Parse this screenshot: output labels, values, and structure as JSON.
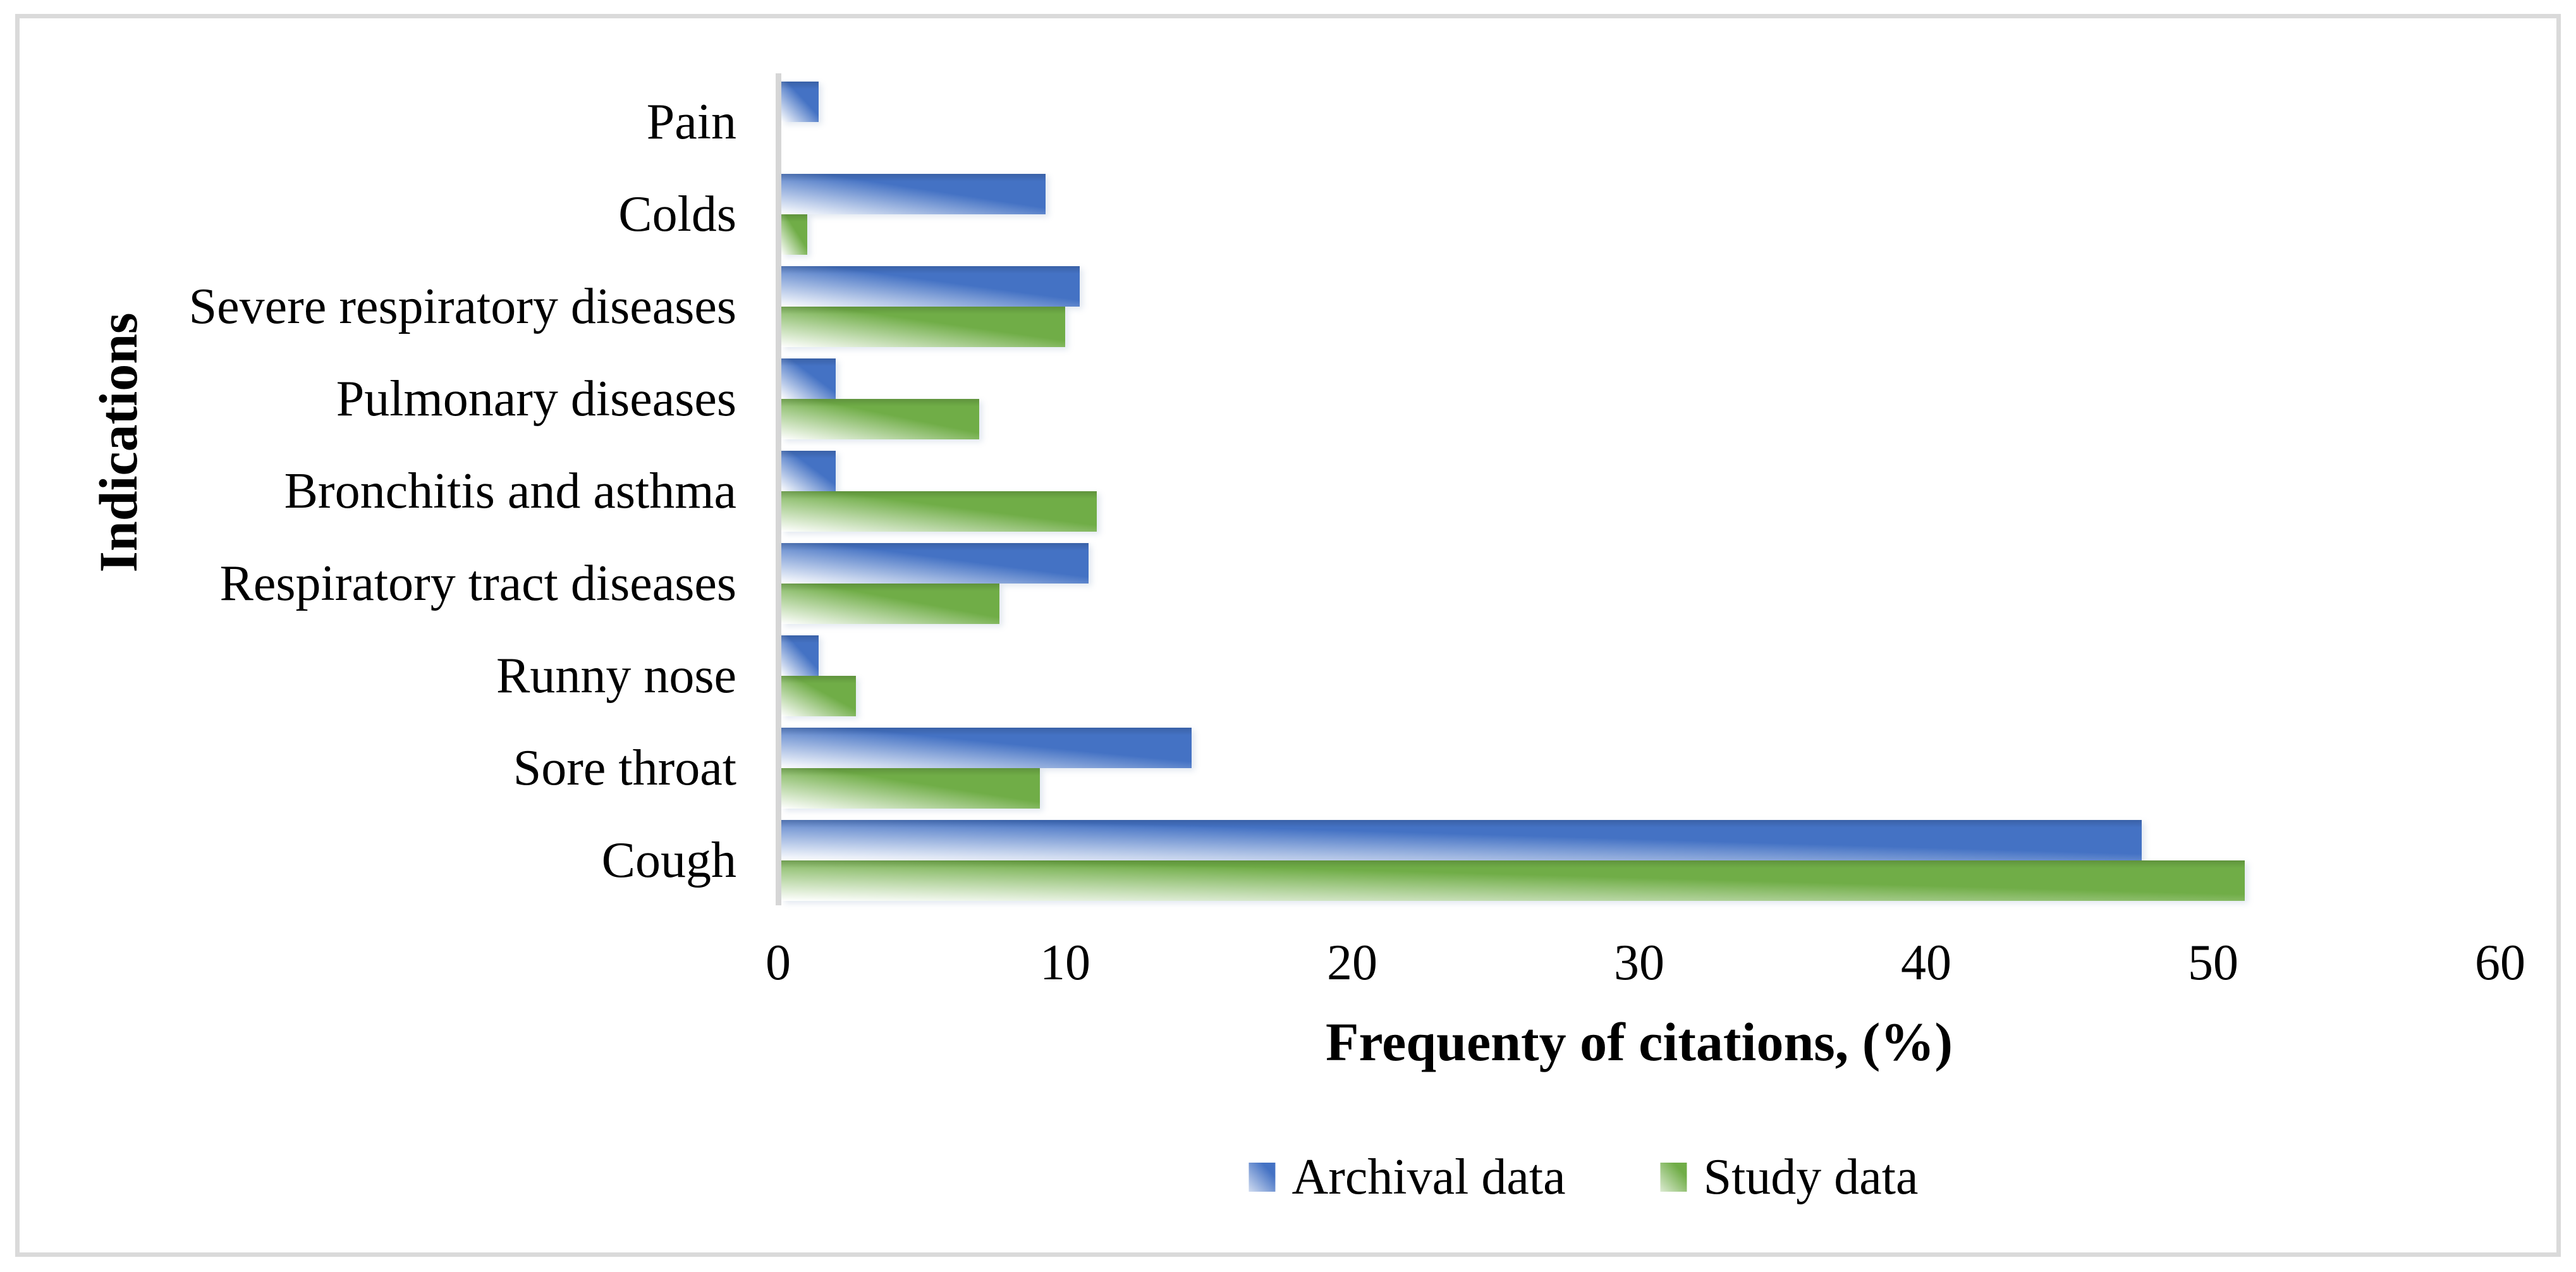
{
  "figure": {
    "background": "#ffffff",
    "frame_border_color": "#dadada",
    "axis_line_color": "#d6d6d6",
    "text_color": "#000000"
  },
  "chart_data": {
    "type": "bar",
    "orientation": "horizontal",
    "title": "",
    "xlabel": "Frequenty of citations, (%)",
    "ylabel": "Indications",
    "xlim": [
      0,
      60
    ],
    "xticks": [
      0,
      10,
      20,
      30,
      40,
      50,
      60
    ],
    "grid": false,
    "legend_position": "bottom-center",
    "categories": [
      "Pain",
      "Colds",
      "Severe respiratory diseases",
      "Pulmonary diseases",
      "Bronchitis and asthma",
      "Respiratory tract diseases",
      "Runny nose",
      "Sore throat",
      "Cough"
    ],
    "series": [
      {
        "name": "Archival data",
        "color": "#4472C4",
        "values": [
          1.3,
          9.2,
          10.4,
          1.9,
          1.9,
          10.7,
          1.3,
          14.3,
          47.4
        ]
      },
      {
        "name": "Study data",
        "color": "#70AD47",
        "values": [
          0,
          0.9,
          9.9,
          6.9,
          11.0,
          7.6,
          2.6,
          9.0,
          51.0
        ]
      }
    ]
  }
}
